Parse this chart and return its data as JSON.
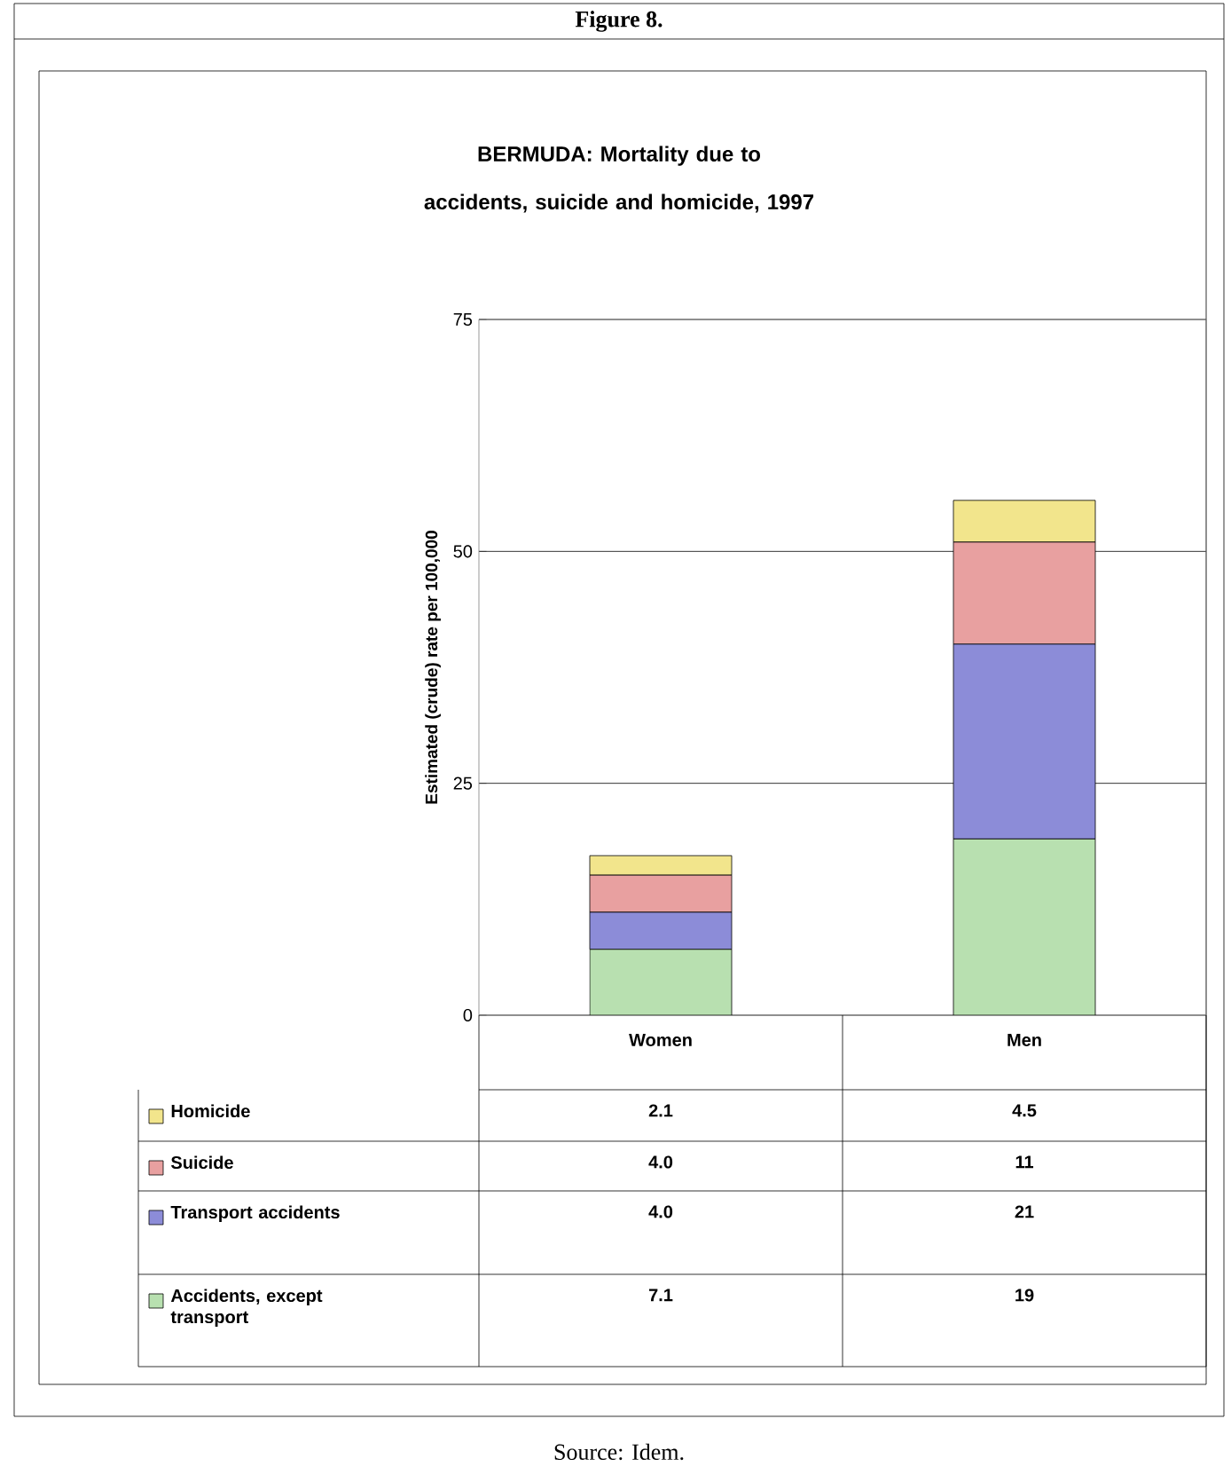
{
  "chart_data": {
    "type": "bar",
    "stacked": true,
    "title": "BERMUDA: Mortality due to accidents, suicide and homicide, 1997",
    "ylabel": "Estimated (crude) rate per 100,000",
    "annotations": [
      "Figure 8.",
      "Source: Idem."
    ],
    "categories": [
      "Women",
      "Men"
    ],
    "series": [
      {
        "name": "Accidents, except transport",
        "color": "#b8e0b0",
        "values": [
          7.1,
          19
        ],
        "value_labels": [
          "7.1",
          "19"
        ]
      },
      {
        "name": "Transport accidents",
        "color": "#8c8cd8",
        "values": [
          4.0,
          21
        ],
        "value_labels": [
          "4.0",
          "21"
        ]
      },
      {
        "name": "Suicide",
        "color": "#e8a0a0",
        "values": [
          4.0,
          11
        ],
        "value_labels": [
          "4.0",
          "11"
        ]
      },
      {
        "name": "Homicide",
        "color": "#f2e58c",
        "values": [
          2.1,
          4.5
        ],
        "value_labels": [
          "2.1",
          "4.5"
        ]
      }
    ],
    "ylim": [
      0,
      75
    ],
    "yticks": [
      0,
      25,
      50,
      75
    ],
    "grid": "y",
    "legend": "bottom"
  }
}
